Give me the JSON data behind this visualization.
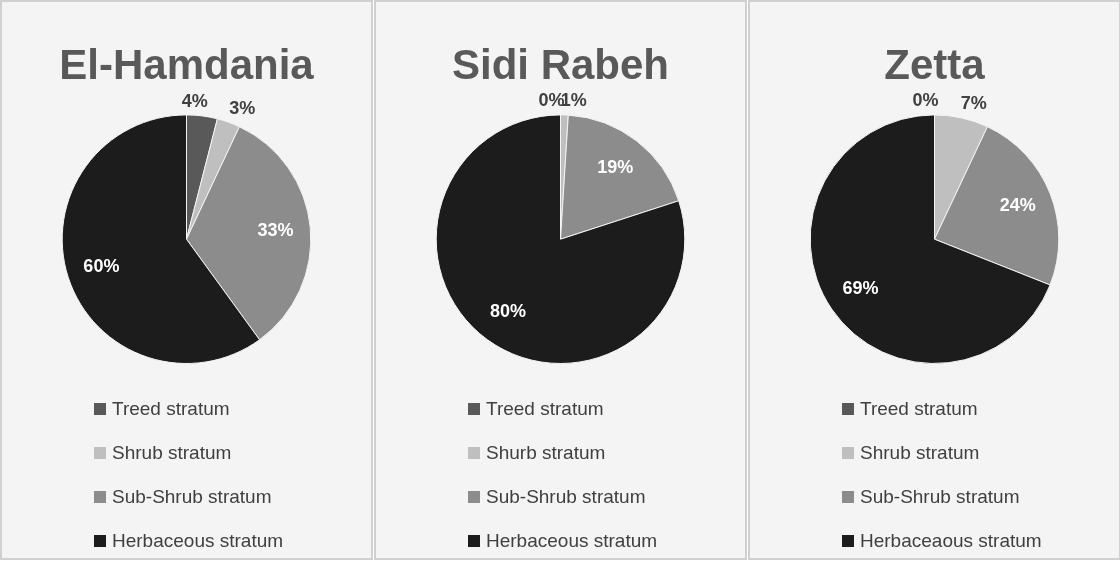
{
  "chart_data": [
    {
      "type": "pie",
      "title": "El-Hamdania",
      "categories": [
        "Treed stratum",
        "Shrub stratum",
        "Sub-Shrub stratum",
        "Herbaceous stratum"
      ],
      "values": [
        4,
        3,
        33,
        60
      ],
      "value_labels": [
        "4%",
        "3%",
        "33%",
        "60%"
      ],
      "colors": [
        "#595959",
        "#bfbfbf",
        "#8c8c8c",
        "#1c1c1c"
      ],
      "legend": "bottom"
    },
    {
      "type": "pie",
      "title": "Sidi Rabeh",
      "categories": [
        "Treed stratum",
        "Shurb stratum",
        "Sub-Shrub stratum",
        "Herbaceous stratum"
      ],
      "values": [
        0,
        1,
        19,
        80
      ],
      "value_labels": [
        "0%",
        "1%",
        "19%",
        "80%"
      ],
      "colors": [
        "#595959",
        "#bfbfbf",
        "#8c8c8c",
        "#1c1c1c"
      ],
      "legend": "bottom"
    },
    {
      "type": "pie",
      "title": "Zetta",
      "categories": [
        "Treed stratum",
        "Shrub stratum",
        "Sub-Shrub stratum",
        "Herbaceaous stratum"
      ],
      "values": [
        0,
        7,
        24,
        69
      ],
      "value_labels": [
        "0%",
        "7%",
        "24%",
        "69%"
      ],
      "colors": [
        "#595959",
        "#bfbfbf",
        "#8c8c8c",
        "#1c1c1c"
      ],
      "legend": "bottom"
    }
  ]
}
